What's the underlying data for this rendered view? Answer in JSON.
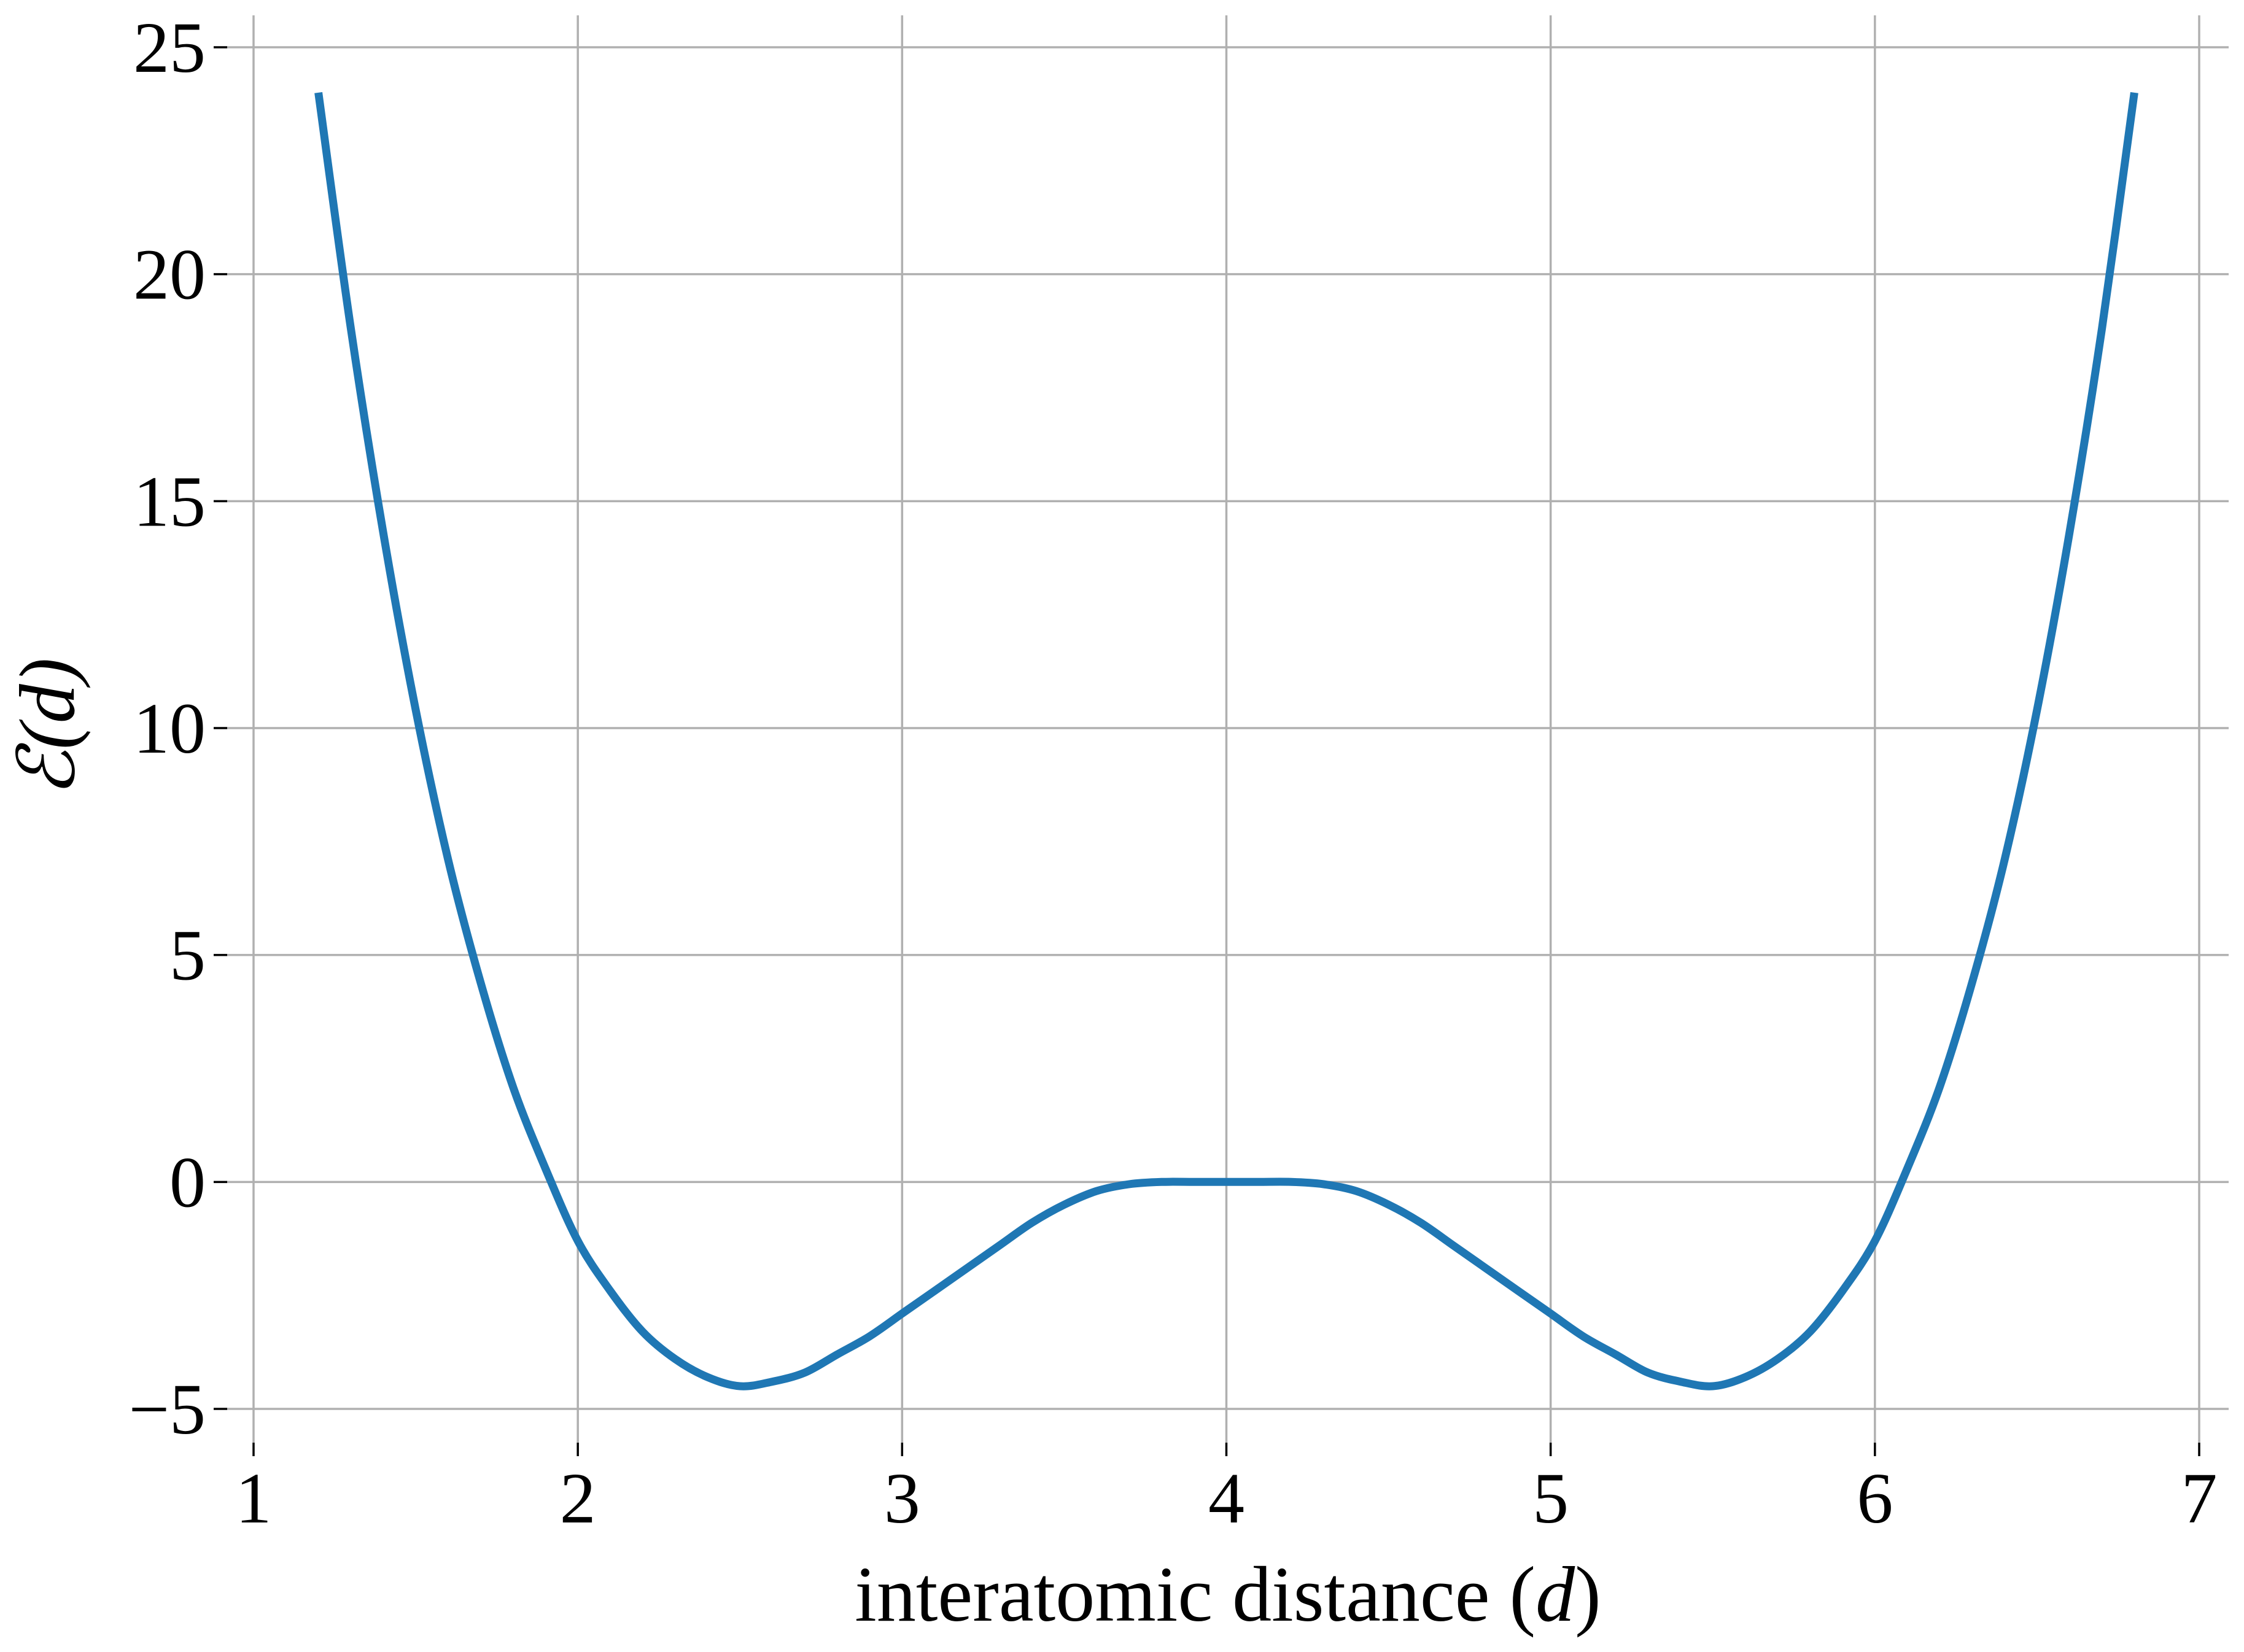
{
  "chart_data": {
    "type": "line",
    "title": "",
    "xlabel": {
      "text": "interatomic distance (",
      "math": "d",
      "suffix": ")"
    },
    "ylabel": {
      "text": "",
      "math": "ℰ(d)"
    },
    "xlim": [
      1,
      7
    ],
    "ylim": [
      -5,
      25
    ],
    "xticks": [
      1,
      2,
      3,
      4,
      5,
      6,
      7
    ],
    "xtick_labels": [
      "1",
      "2",
      "3",
      "4",
      "5",
      "6",
      "7"
    ],
    "yticks": [
      -5,
      0,
      5,
      10,
      15,
      20,
      25
    ],
    "ytick_labels": [
      "−5",
      "0",
      "5",
      "10",
      "15",
      "20",
      "25"
    ],
    "grid": true,
    "legend": "none",
    "series": [
      {
        "color": "#1f77b4",
        "x": [
          1.2,
          1.3,
          1.4,
          1.5,
          1.6,
          1.7,
          1.8,
          1.9,
          2.0,
          2.1,
          2.2,
          2.3,
          2.4,
          2.5,
          2.6,
          2.7,
          2.8,
          2.9,
          3.0,
          3.1,
          3.2,
          3.3,
          3.4,
          3.5,
          3.6,
          3.7,
          3.8,
          3.9,
          4.0,
          4.1,
          4.2,
          4.3,
          4.4,
          4.5,
          4.6,
          4.7,
          4.8,
          4.9,
          5.0,
          5.1,
          5.2,
          5.3,
          5.4,
          5.5,
          5.6,
          5.7,
          5.8,
          5.9,
          6.0,
          6.1,
          6.2,
          6.3,
          6.4,
          6.5,
          6.6,
          6.7,
          6.8
        ],
        "y": [
          24.0,
          18.8,
          14.3,
          10.4,
          7.1,
          4.4,
          2.1,
          0.3,
          -1.3,
          -2.4,
          -3.3,
          -3.9,
          -4.3,
          -4.5,
          -4.4,
          -4.2,
          -3.8,
          -3.4,
          -2.9,
          -2.4,
          -1.9,
          -1.4,
          -0.9,
          -0.5,
          -0.2,
          -0.05,
          0.0,
          0.0,
          0.0,
          0.0,
          0.0,
          -0.05,
          -0.2,
          -0.5,
          -0.9,
          -1.4,
          -1.9,
          -2.4,
          -2.9,
          -3.4,
          -3.8,
          -4.2,
          -4.4,
          -4.5,
          -4.3,
          -3.9,
          -3.3,
          -2.4,
          -1.3,
          0.3,
          2.1,
          4.4,
          7.1,
          10.4,
          14.3,
          18.8,
          24.0
        ]
      }
    ]
  }
}
